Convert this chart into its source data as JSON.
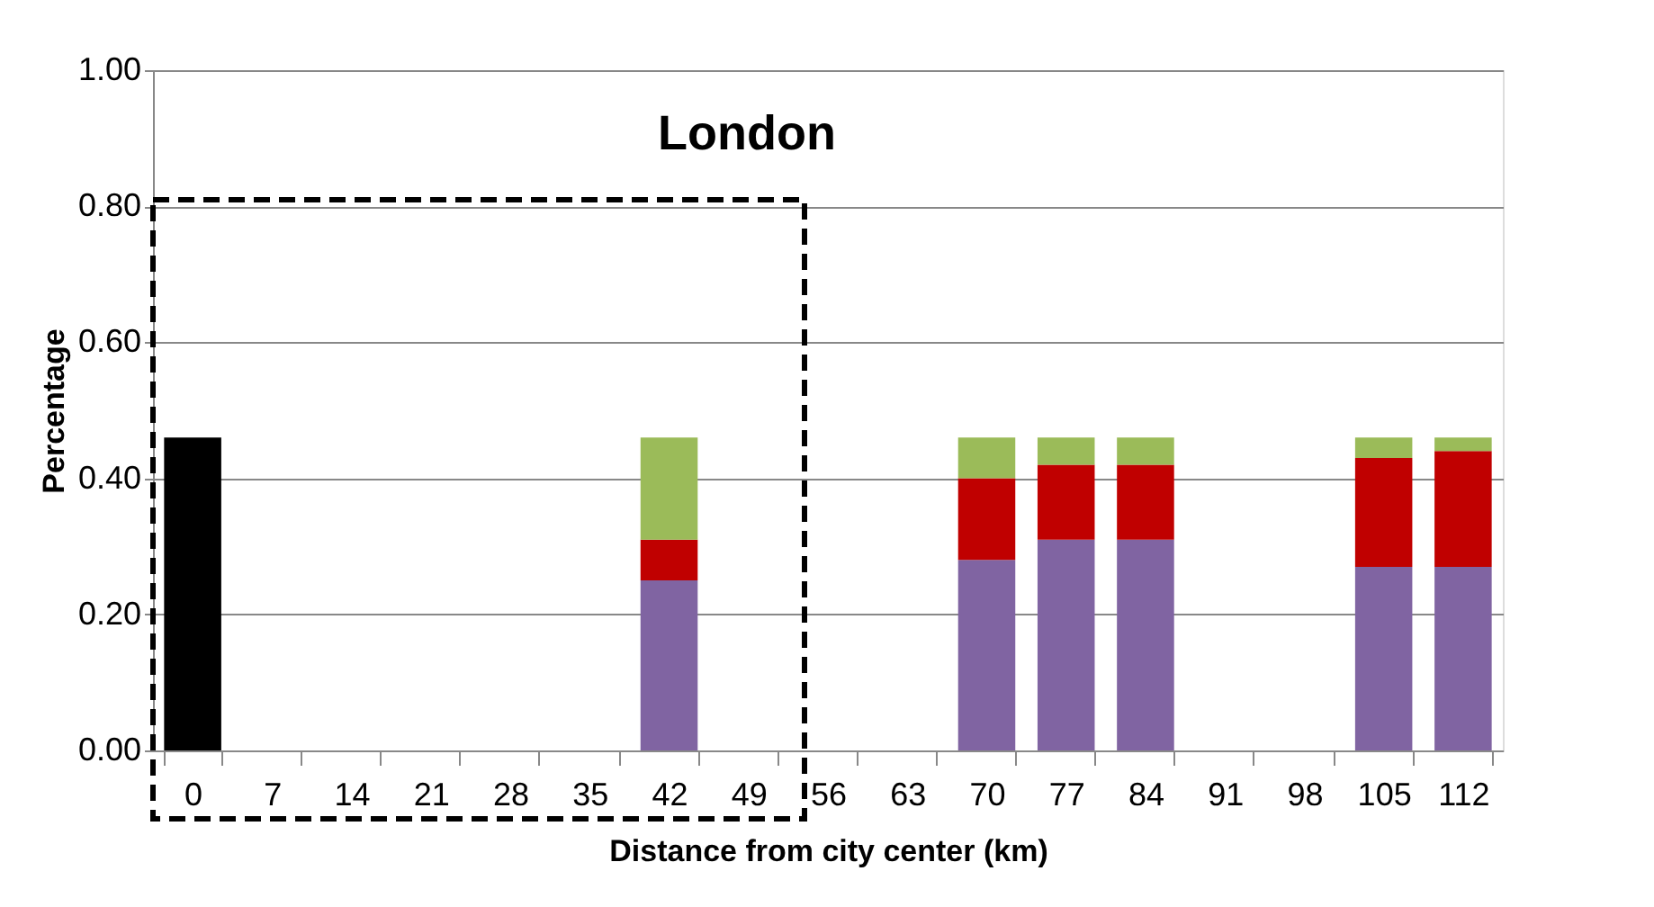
{
  "chart_data": {
    "type": "bar",
    "title": "London",
    "xlabel": "Distance from city center (km)",
    "ylabel": "Percentage",
    "categories": [
      "0",
      "7",
      "14",
      "21",
      "28",
      "35",
      "42",
      "49",
      "56",
      "63",
      "70",
      "77",
      "84",
      "91",
      "98",
      "105",
      "112"
    ],
    "stacked": true,
    "series": [
      {
        "color": "#000000",
        "values": [
          0.46,
          null,
          null,
          null,
          null,
          null,
          null,
          null,
          null,
          null,
          null,
          null,
          null,
          null,
          null,
          null,
          null
        ]
      },
      {
        "color": "#8064a2",
        "values": [
          null,
          null,
          null,
          null,
          null,
          null,
          0.25,
          null,
          null,
          null,
          0.28,
          0.31,
          0.31,
          null,
          null,
          0.27,
          0.27
        ]
      },
      {
        "color": "#c00000",
        "values": [
          null,
          null,
          null,
          null,
          null,
          null,
          0.06,
          null,
          null,
          null,
          0.12,
          0.11,
          0.11,
          null,
          null,
          0.16,
          0.17
        ]
      },
      {
        "color": "#9bbb59",
        "values": [
          null,
          null,
          null,
          null,
          null,
          null,
          0.15,
          null,
          null,
          null,
          0.06,
          0.04,
          0.04,
          null,
          null,
          0.03,
          0.02
        ]
      }
    ],
    "ylim": [
      0,
      1
    ],
    "yticks": [
      {
        "value": 0,
        "label": "0.00"
      },
      {
        "value": 0.2,
        "label": "0.20"
      },
      {
        "value": 0.4,
        "label": "0.40"
      },
      {
        "value": 0.6,
        "label": "0.60"
      },
      {
        "value": 0.8,
        "label": "0.80"
      },
      {
        "value": 1,
        "label": "1.00"
      }
    ],
    "grid": "y",
    "legend": false
  }
}
